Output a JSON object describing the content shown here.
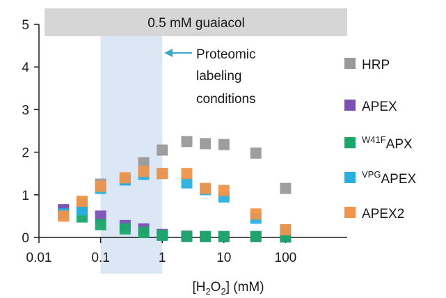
{
  "chart_data": {
    "type": "scatter",
    "title": "",
    "banner": "0.5 mM guaiacol",
    "xlabel": {
      "pre": "[H",
      "sub1": "2",
      "mid": "O",
      "sub2": "2",
      "post": "] (mM)"
    },
    "ylabel": "",
    "xscale": "log",
    "xlim": [
      0.01,
      1000
    ],
    "ylim": [
      0,
      5
    ],
    "xticks": [
      {
        "value": 0.01,
        "label": "0.01"
      },
      {
        "value": 0.1,
        "label": "0.1"
      },
      {
        "value": 1,
        "label": "1"
      },
      {
        "value": 10,
        "label": "10"
      },
      {
        "value": 100,
        "label": "100"
      }
    ],
    "yticks": [
      {
        "value": 0,
        "label": "0"
      },
      {
        "value": 1,
        "label": "1"
      },
      {
        "value": 2,
        "label": "2"
      },
      {
        "value": 3,
        "label": "3"
      },
      {
        "value": 4,
        "label": "4"
      },
      {
        "value": 5,
        "label": "5"
      }
    ],
    "shaded_region": {
      "x": [
        0.1,
        1
      ],
      "color": "#dbe7f5"
    },
    "annotation": {
      "lines": [
        "Proteomic",
        "labeling",
        "conditions"
      ],
      "arrow_color": "#3aa8c8"
    },
    "grid": false,
    "legend_position": "right",
    "x": [
      0.025,
      0.05,
      0.1,
      0.25,
      0.5,
      1,
      2.5,
      5,
      10,
      33,
      100
    ],
    "series": [
      {
        "name": "HRP",
        "color": "#999999",
        "values": [
          0.65,
          0.8,
          1.25,
          1.35,
          1.75,
          2.05,
          2.25,
          2.2,
          2.18,
          1.98,
          1.15
        ]
      },
      {
        "name": "APEX",
        "color": "#7b4fb5",
        "values": [
          0.65,
          0.68,
          0.5,
          0.28,
          0.2,
          0.07,
          0.03,
          0.02,
          0.02,
          0.02,
          0.02
        ]
      },
      {
        "name": "W41FAPX",
        "label_sup": "W41F",
        "label_main": "APX",
        "color": "#1aa86a",
        "values": [
          0.55,
          0.48,
          0.3,
          0.2,
          0.12,
          0.05,
          0.02,
          0.02,
          0.02,
          0.02,
          0.01
        ]
      },
      {
        "name": "VPGAPEX",
        "label_sup": "VPG",
        "label_main": "APEX",
        "color": "#2ab0e0",
        "values": [
          0.55,
          0.65,
          1.15,
          1.35,
          1.48,
          1.5,
          1.28,
          1.12,
          0.95,
          0.45,
          0.18
        ]
      },
      {
        "name": "APEX2",
        "color": "#f0954a",
        "values": [
          0.5,
          0.85,
          1.2,
          1.4,
          1.55,
          1.5,
          1.5,
          1.15,
          1.1,
          0.55,
          0.18
        ]
      }
    ]
  }
}
